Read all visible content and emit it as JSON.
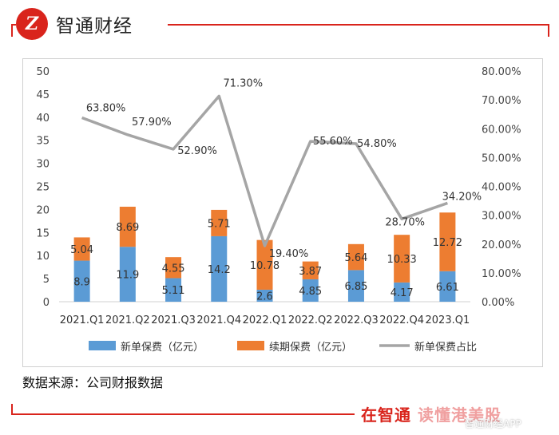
{
  "brand": {
    "logo_mark": "Z",
    "name": "智通财经",
    "slogan_main": "在智通",
    "slogan_accent": "读懂港美股",
    "watermark": "智通财经APP",
    "color": "#d9241c"
  },
  "source_text": "数据来源：公司财报数据",
  "chart_data": {
    "type": "bar",
    "stacked": true,
    "categories": [
      "2021.Q1",
      "2021.Q2",
      "2021.Q3",
      "2021.Q4",
      "2022.Q1",
      "2022.Q2",
      "2022.Q3",
      "2022.Q4",
      "2023.Q1"
    ],
    "series": [
      {
        "name": "新单保费（亿元）",
        "values": [
          8.9,
          11.9,
          5.11,
          14.2,
          2.6,
          4.85,
          6.85,
          4.17,
          6.61
        ],
        "labels": [
          "8.9",
          "11.9",
          "5.11",
          "14.2",
          "2.6",
          "4.85",
          "6.85",
          "4.17",
          "6.61"
        ],
        "color": "#5b9bd5",
        "axis": "left"
      },
      {
        "name": "续期保费（亿元）",
        "values": [
          5.04,
          8.69,
          4.55,
          5.71,
          10.78,
          3.87,
          5.64,
          10.33,
          12.72
        ],
        "labels": [
          "5.04",
          "8.69",
          "4.55",
          "5.71",
          "10.78",
          "3.87",
          "5.64",
          "10.33",
          "12.72"
        ],
        "color": "#ed7d31",
        "axis": "left"
      },
      {
        "name": "新单保费占比",
        "type": "line",
        "values": [
          63.8,
          57.9,
          52.9,
          71.3,
          19.4,
          55.6,
          54.8,
          28.7,
          34.2
        ],
        "labels": [
          "63.80%",
          "57.90%",
          "52.90%",
          "71.30%",
          "19.40%",
          "55.60%",
          "54.80%",
          "28.70%",
          "34.20%"
        ],
        "color": "#a5a5a5",
        "axis": "right"
      }
    ],
    "y_left": {
      "min": 0,
      "max": 50,
      "ticks": [
        "0",
        "5",
        "10",
        "15",
        "20",
        "25",
        "30",
        "35",
        "40",
        "45",
        "50"
      ]
    },
    "y_right": {
      "min": 0,
      "max": 80,
      "ticks": [
        "0.00%",
        "10.00%",
        "20.00%",
        "30.00%",
        "40.00%",
        "50.00%",
        "60.00%",
        "70.00%",
        "80.00%"
      ]
    },
    "grid": false,
    "legend_position": "bottom"
  }
}
